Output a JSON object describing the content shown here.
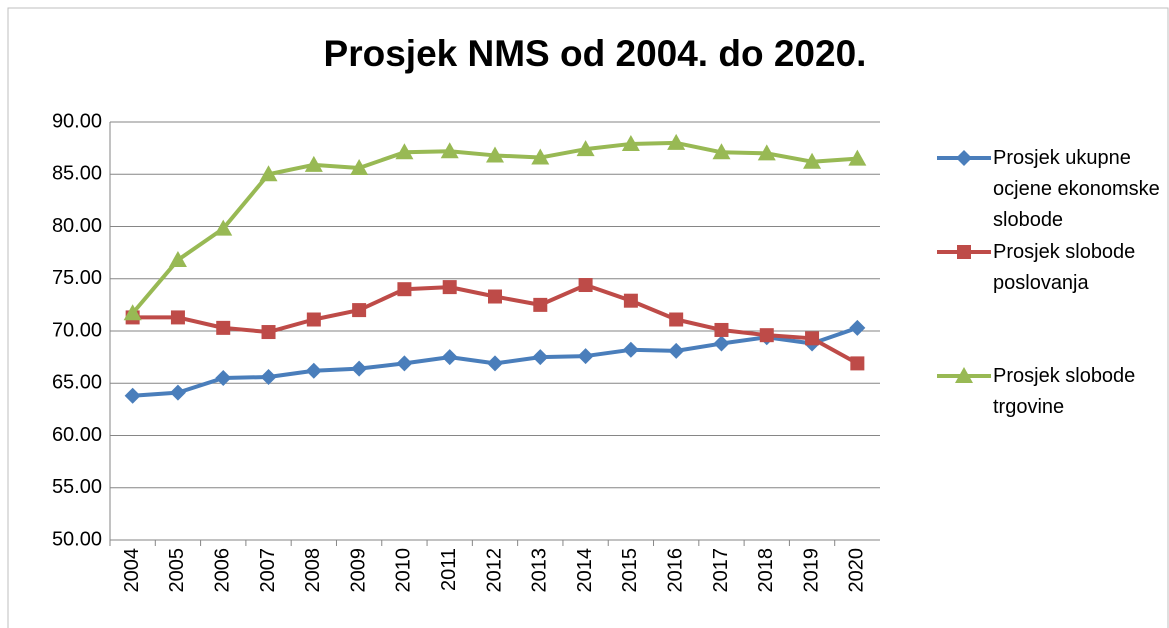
{
  "chart_data": {
    "type": "line",
    "title": "Prosjek NMS od 2004. do 2020.",
    "categories": [
      "2004",
      "2005",
      "2006",
      "2007",
      "2008",
      "2009",
      "2010",
      "2011",
      "2012",
      "2013",
      "2014",
      "2015",
      "2016",
      "2017",
      "2018",
      "2019",
      "2020"
    ],
    "series": [
      {
        "name": "Prosjek ukupne ocjene ekonomske slobode",
        "color": "#4a7ebb",
        "marker": "diamond",
        "values": [
          63.8,
          64.1,
          65.5,
          65.6,
          66.2,
          66.4,
          66.9,
          67.5,
          66.9,
          67.5,
          67.6,
          68.2,
          68.1,
          68.8,
          69.4,
          68.8,
          70.3
        ]
      },
      {
        "name": "Prosjek slobode poslovanja",
        "color": "#be4b48",
        "marker": "square",
        "values": [
          71.3,
          71.3,
          70.3,
          69.9,
          71.1,
          72.0,
          74.0,
          74.2,
          73.3,
          72.5,
          74.4,
          72.9,
          71.1,
          70.1,
          69.6,
          69.3,
          66.9
        ]
      },
      {
        "name": "Prosjek slobode trgovine",
        "color": "#98b954",
        "marker": "triangle",
        "values": [
          71.7,
          76.8,
          79.8,
          85.0,
          85.9,
          85.6,
          87.1,
          87.2,
          86.8,
          86.6,
          87.4,
          87.9,
          88.0,
          87.1,
          87.0,
          86.2,
          86.5
        ]
      }
    ],
    "ylim": [
      50,
      90
    ],
    "yticks": [
      {
        "value": 50,
        "label": "50.00"
      },
      {
        "value": 55,
        "label": "55.00"
      },
      {
        "value": 60,
        "label": "60.00"
      },
      {
        "value": 65,
        "label": "65.00"
      },
      {
        "value": 70,
        "label": "70.00"
      },
      {
        "value": 75,
        "label": "75.00"
      },
      {
        "value": 80,
        "label": "80.00"
      },
      {
        "value": 85,
        "label": "85.00"
      },
      {
        "value": 90,
        "label": "90.00"
      }
    ],
    "grid": true,
    "legend": "right"
  }
}
